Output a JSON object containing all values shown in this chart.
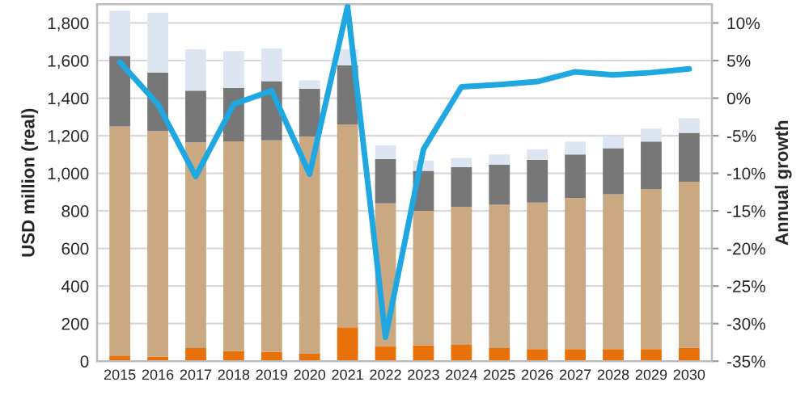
{
  "chart_data": {
    "type": "bar",
    "stacked": true,
    "ylabel": "USD million (real)",
    "y2label": "Annual growth",
    "categories": [
      "2015",
      "2016",
      "2017",
      "2018",
      "2019",
      "2020",
      "2021",
      "2022",
      "2023",
      "2024",
      "2025",
      "2026",
      "2027",
      "2028",
      "2029",
      "2030"
    ],
    "series": [
      {
        "color": "#e8710a",
        "values": [
          30,
          25,
          70,
          55,
          50,
          40,
          180,
          80,
          85,
          87,
          70,
          64,
          64,
          64,
          64,
          72
        ]
      },
      {
        "color": "#c9a882",
        "values": [
          1220,
          1200,
          1095,
          1115,
          1125,
          1155,
          1080,
          760,
          715,
          735,
          763,
          781,
          804,
          824,
          853,
          883
        ]
      },
      {
        "color": "#777777",
        "values": [
          375,
          310,
          275,
          285,
          315,
          255,
          315,
          235,
          213,
          211,
          214,
          226,
          232,
          246,
          252,
          260
        ]
      },
      {
        "color": "#dde6f0",
        "values": [
          240,
          320,
          220,
          195,
          175,
          45,
          85,
          75,
          55,
          49,
          53,
          57,
          69,
          64,
          69,
          78
        ]
      },
      {
        "type": "line",
        "axis": "y2",
        "color": "#1ea7e0",
        "values": [
          4.8,
          -0.8,
          -10.4,
          -0.8,
          1.0,
          -10.1,
          12.2,
          -31.8,
          -6.8,
          1.5,
          1.8,
          2.2,
          3.5,
          3.1,
          3.4,
          3.9
        ]
      }
    ],
    "ylim": [
      0,
      1900
    ],
    "yticks": [
      0,
      200,
      400,
      600,
      800,
      {
        "value": 1000,
        "label": "1,000"
      },
      {
        "value": 1200,
        "label": "1,200"
      },
      {
        "value": 1400,
        "label": "1,400"
      },
      {
        "value": 1600,
        "label": "1,600"
      },
      {
        "value": 1800,
        "label": "1,800"
      }
    ],
    "y2lim": [
      -35,
      12.5
    ],
    "y2ticks": [
      {
        "value": -35,
        "label": "-35%"
      },
      {
        "value": -30,
        "label": "-30%"
      },
      {
        "value": -25,
        "label": "-25%"
      },
      {
        "value": -20,
        "label": "-20%"
      },
      {
        "value": -15,
        "label": "-15%"
      },
      {
        "value": -10,
        "label": "-10%"
      },
      {
        "value": -5,
        "label": "-5%"
      },
      {
        "value": 0,
        "label": "0%"
      },
      {
        "value": 5,
        "label": "5%"
      },
      {
        "value": 10,
        "label": "10%"
      }
    ],
    "grid": "y",
    "legend": false,
    "line_style": "solid",
    "marker": "none"
  }
}
